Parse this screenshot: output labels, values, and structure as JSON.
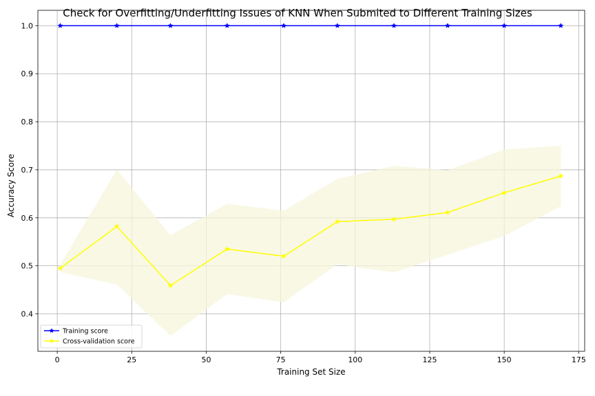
{
  "chart_data": {
    "type": "line",
    "title": "Check for Overfitting/Underfitting Issues of KNN When Submited to Different Training Sizes",
    "xlabel": "Training Set Size",
    "ylabel": "Accuracy Score",
    "xlim": [
      -6.5,
      177
    ],
    "ylim": [
      0.322,
      1.032
    ],
    "xticks": [
      0,
      25,
      50,
      75,
      100,
      125,
      150,
      175
    ],
    "yticks": [
      0.4,
      0.5,
      0.6,
      0.7,
      0.8,
      0.9,
      1.0
    ],
    "ytick_labels": [
      "0.4",
      "0.5",
      "0.6",
      "0.7",
      "0.8",
      "0.9",
      "1.0"
    ],
    "grid": true,
    "legend_position": "lower-left",
    "x": [
      1,
      20,
      38,
      57,
      76,
      94,
      113,
      131,
      150,
      169
    ],
    "series": [
      {
        "name": "Training score",
        "color": "#0000ff",
        "marker": "star",
        "values": [
          1.0,
          1.0,
          1.0,
          1.0,
          1.0,
          1.0,
          1.0,
          1.0,
          1.0,
          1.0
        ]
      },
      {
        "name": "Cross-validation score",
        "color": "#ffff00",
        "marker": "star",
        "values": [
          0.495,
          0.582,
          0.459,
          0.535,
          0.52,
          0.592,
          0.597,
          0.611,
          0.652,
          0.687
        ],
        "band_lower": [
          0.487,
          0.461,
          0.354,
          0.441,
          0.424,
          0.503,
          0.486,
          0.523,
          0.562,
          0.624
        ],
        "band_upper": [
          0.503,
          0.7,
          0.564,
          0.629,
          0.615,
          0.681,
          0.708,
          0.699,
          0.742,
          0.75
        ],
        "band_color": "#f5f5dc"
      }
    ]
  }
}
